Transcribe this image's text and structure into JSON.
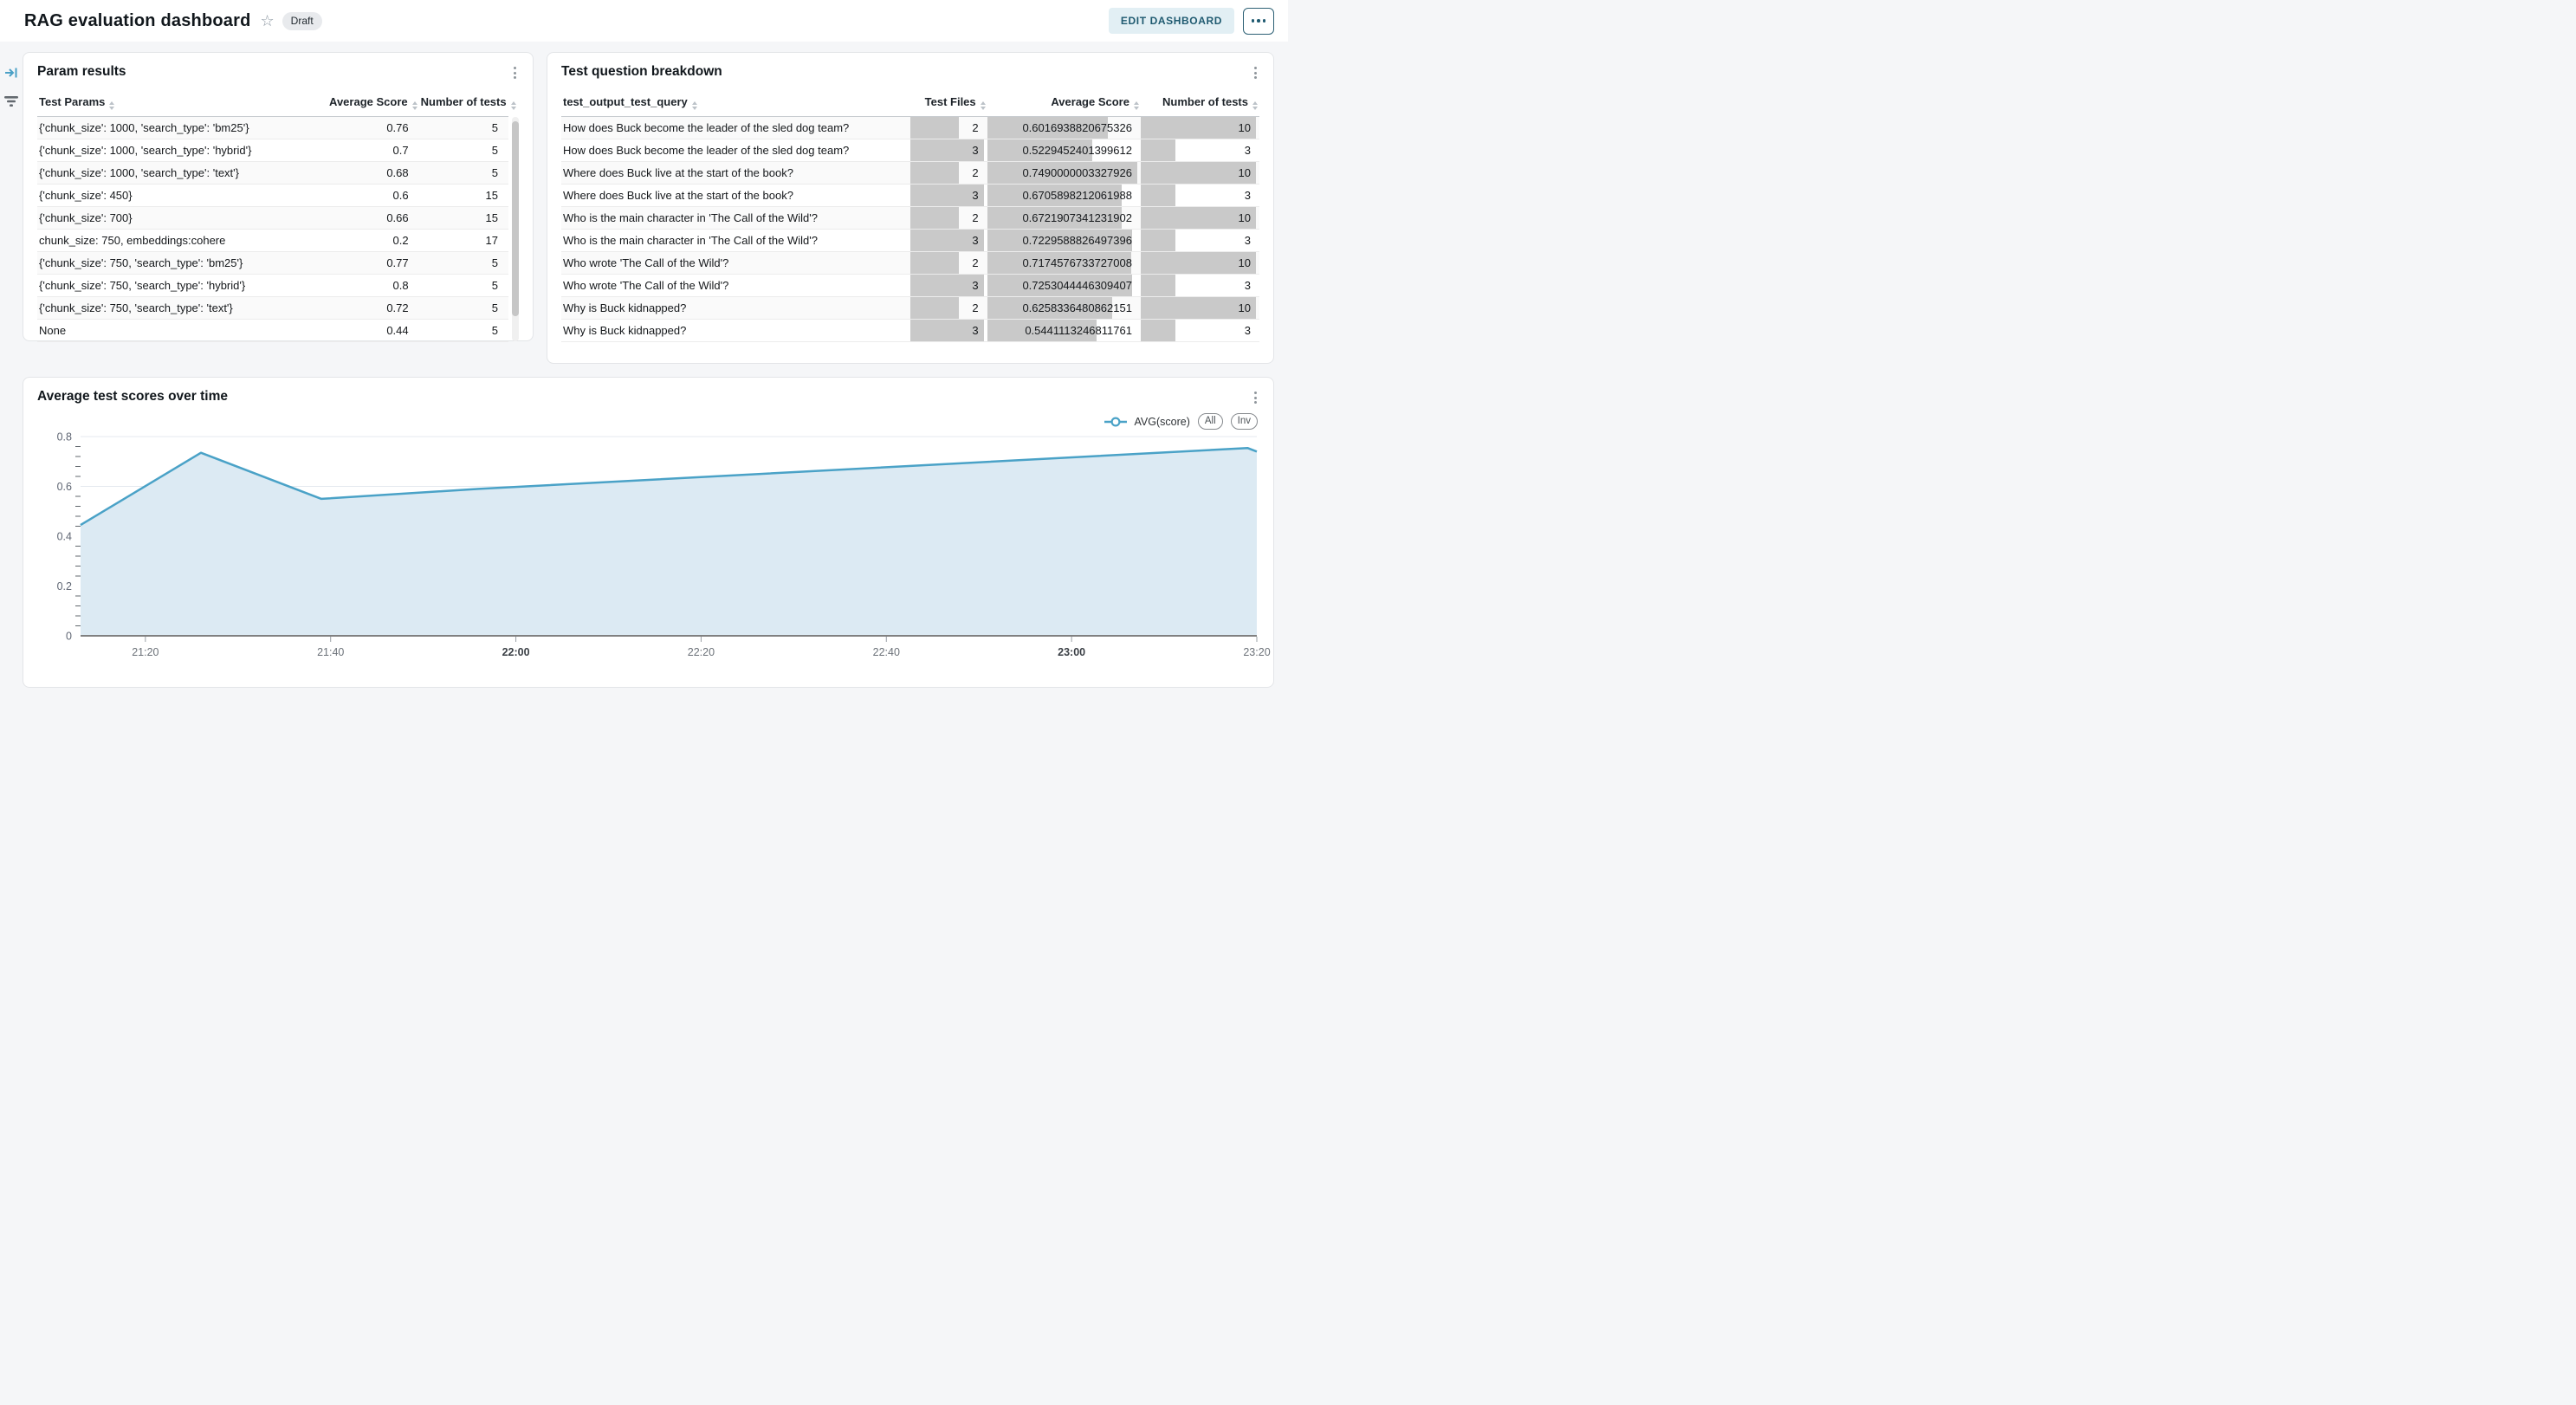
{
  "header": {
    "title": "RAG evaluation dashboard",
    "status_badge": "Draft",
    "edit_button": "EDIT DASHBOARD",
    "icons": {
      "favorite": "star-outline",
      "more": "ellipsis"
    }
  },
  "side_icons": [
    {
      "name": "expand-panel-icon",
      "color": "#4aa0c6"
    },
    {
      "name": "filter-icon",
      "color": "#63696f"
    }
  ],
  "param_results": {
    "title": "Param results",
    "columns": [
      "Test Params",
      "Average Score",
      "Number of tests"
    ],
    "rows": [
      {
        "params": "{'chunk_size': 1000, 'search_type': 'bm25'}",
        "avg_score": "0.76",
        "num_tests": "5"
      },
      {
        "params": "{'chunk_size': 1000, 'search_type': 'hybrid'}",
        "avg_score": "0.7",
        "num_tests": "5"
      },
      {
        "params": "{'chunk_size': 1000, 'search_type': 'text'}",
        "avg_score": "0.68",
        "num_tests": "5"
      },
      {
        "params": "{'chunk_size': 450}",
        "avg_score": "0.6",
        "num_tests": "15"
      },
      {
        "params": "{'chunk_size': 700}",
        "avg_score": "0.66",
        "num_tests": "15"
      },
      {
        "params": "chunk_size: 750, embeddings:cohere",
        "avg_score": "0.2",
        "num_tests": "17"
      },
      {
        "params": "{'chunk_size': 750, 'search_type': 'bm25'}",
        "avg_score": "0.77",
        "num_tests": "5"
      },
      {
        "params": "{'chunk_size': 750, 'search_type': 'hybrid'}",
        "avg_score": "0.8",
        "num_tests": "5"
      },
      {
        "params": "{'chunk_size': 750, 'search_type': 'text'}",
        "avg_score": "0.72",
        "num_tests": "5"
      },
      {
        "params": "None",
        "avg_score": "0.44",
        "num_tests": "5"
      }
    ]
  },
  "question_breakdown": {
    "title": "Test question breakdown",
    "columns": [
      "test_output_test_query",
      "Test Files",
      "Average Score",
      "Number of tests"
    ],
    "bar_color": "#c9c9c9",
    "rows": [
      {
        "query": "How does Buck become the leader of the sled dog team?",
        "files": 2,
        "score": "0.6016938820675326",
        "tests": 10
      },
      {
        "query": "How does Buck become the leader of the sled dog team?",
        "files": 3,
        "score": "0.5229452401399612",
        "tests": 3
      },
      {
        "query": "Where does Buck live at the start of the book?",
        "files": 2,
        "score": "0.7490000003327926",
        "tests": 10
      },
      {
        "query": "Where does Buck live at the start of the book?",
        "files": 3,
        "score": "0.6705898212061988",
        "tests": 3
      },
      {
        "query": "Who is the main character in 'The Call of the Wild'?",
        "files": 2,
        "score": "0.6721907341231902",
        "tests": 10
      },
      {
        "query": "Who is the main character in 'The Call of the Wild'?",
        "files": 3,
        "score": "0.7229588826497396",
        "tests": 3
      },
      {
        "query": "Who wrote 'The Call of the Wild'?",
        "files": 2,
        "score": "0.7174576733727008",
        "tests": 10
      },
      {
        "query": "Who wrote 'The Call of the Wild'?",
        "files": 3,
        "score": "0.7253044446309407",
        "tests": 3
      },
      {
        "query": "Why is Buck kidnapped?",
        "files": 2,
        "score": "0.6258336480862151",
        "tests": 10
      },
      {
        "query": "Why is Buck kidnapped?",
        "files": 3,
        "score": "0.5441113246811761",
        "tests": 3
      }
    ]
  },
  "chart_card": {
    "title": "Average test scores over time",
    "legend": {
      "series_label": "AVG(score)",
      "buttons": [
        "All",
        "Inv"
      ]
    }
  },
  "chart_data": {
    "type": "area",
    "title": "Average test scores over time",
    "series": [
      {
        "name": "AVG(score)",
        "points": [
          {
            "x": "21:13",
            "y": 0.445
          },
          {
            "x": "21:26",
            "y": 0.735
          },
          {
            "x": "21:39",
            "y": 0.55
          },
          {
            "x": "21:56",
            "y": 0.59
          },
          {
            "x": "23:19",
            "y": 0.754
          },
          {
            "x": "23:20",
            "y": 0.74
          }
        ]
      }
    ],
    "x_range": [
      "21:13",
      "23:20"
    ],
    "x_ticks": [
      "21:20",
      "21:40",
      "22:00",
      "22:20",
      "22:40",
      "23:00",
      "23:20"
    ],
    "bold_x_ticks": [
      "22:00",
      "23:00"
    ],
    "y_ticks": [
      0,
      0.2,
      0.4,
      0.6,
      0.8
    ],
    "y_tick_labels": [
      "0",
      "0.2",
      "0.4",
      "0.6",
      "0.8"
    ],
    "ylim": [
      0,
      0.8
    ],
    "minor_tick_step": 0.04,
    "grid": true,
    "legend_position": "top-right",
    "line_color": "#4aa2c7",
    "fill_color": "#dceaf3",
    "axis_color": "#808080",
    "grid_color": "#e4e9ef"
  }
}
